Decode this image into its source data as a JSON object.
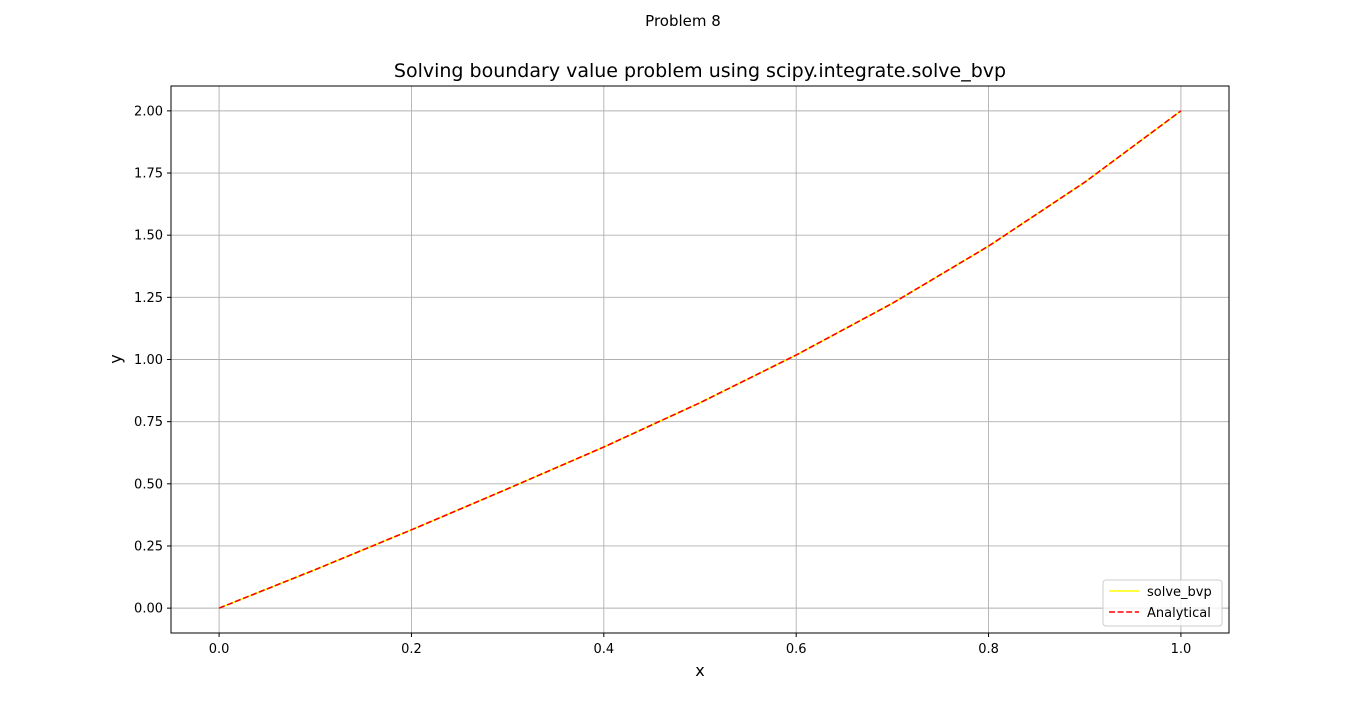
{
  "figure": {
    "suptitle": "Problem 8"
  },
  "chart_data": {
    "type": "line",
    "title": "Solving boundary value problem using scipy.integrate.solve_bvp",
    "xlabel": "x",
    "ylabel": "y",
    "xlim": [
      -0.05,
      1.05
    ],
    "ylim": [
      -0.1,
      2.1
    ],
    "xticks": [
      0.0,
      0.2,
      0.4,
      0.6,
      0.8,
      1.0
    ],
    "xtick_labels": [
      "0.0",
      "0.2",
      "0.4",
      "0.6",
      "0.8",
      "1.0"
    ],
    "yticks": [
      0.0,
      0.25,
      0.5,
      0.75,
      1.0,
      1.25,
      1.5,
      1.75,
      2.0
    ],
    "ytick_labels": [
      "0.00",
      "0.25",
      "0.50",
      "0.75",
      "1.00",
      "1.25",
      "1.50",
      "1.75",
      "2.00"
    ],
    "grid": true,
    "legend_position": "lower-right",
    "x": [
      0.0,
      0.1,
      0.2,
      0.3,
      0.4,
      0.5,
      0.6,
      0.7,
      0.8,
      0.9,
      1.0
    ],
    "series": [
      {
        "name": "solve_bvp",
        "color": "#ffff00",
        "style": "solid",
        "values": [
          0.0,
          0.155,
          0.315,
          0.48,
          0.648,
          0.826,
          1.018,
          1.226,
          1.456,
          1.713,
          2.0
        ]
      },
      {
        "name": "Analytical",
        "color": "#ff0000",
        "style": "dashed",
        "values": [
          0.0,
          0.155,
          0.315,
          0.48,
          0.648,
          0.826,
          1.018,
          1.226,
          1.456,
          1.713,
          2.0
        ]
      }
    ]
  }
}
